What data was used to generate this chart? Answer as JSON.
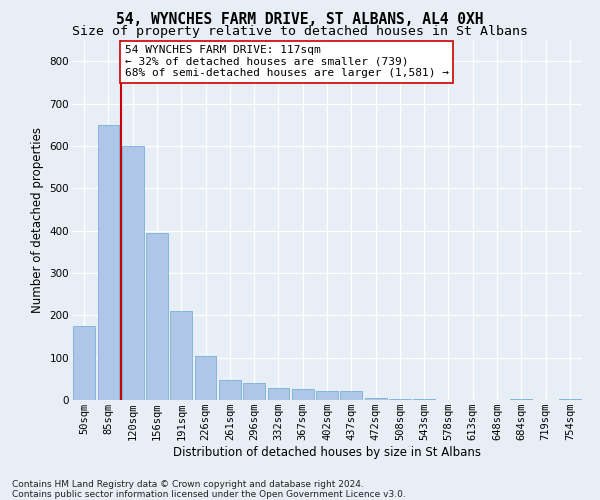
{
  "title": "54, WYNCHES FARM DRIVE, ST ALBANS, AL4 0XH",
  "subtitle": "Size of property relative to detached houses in St Albans",
  "xlabel": "Distribution of detached houses by size in St Albans",
  "ylabel": "Number of detached properties",
  "footnote": "Contains HM Land Registry data © Crown copyright and database right 2024.\nContains public sector information licensed under the Open Government Licence v3.0.",
  "bar_labels": [
    "50sqm",
    "85sqm",
    "120sqm",
    "156sqm",
    "191sqm",
    "226sqm",
    "261sqm",
    "296sqm",
    "332sqm",
    "367sqm",
    "402sqm",
    "437sqm",
    "472sqm",
    "508sqm",
    "543sqm",
    "578sqm",
    "613sqm",
    "648sqm",
    "684sqm",
    "719sqm",
    "754sqm"
  ],
  "bar_values": [
    175,
    650,
    600,
    395,
    210,
    105,
    47,
    40,
    28,
    25,
    22,
    22,
    4,
    3,
    3,
    0,
    0,
    0,
    3,
    0,
    3
  ],
  "bar_color": "#aec6e8",
  "bar_edge_color": "#7ab0d8",
  "background_color": "#e8eef5",
  "grid_color": "#ffffff",
  "vline_color": "#cc0000",
  "annotation_text": "54 WYNCHES FARM DRIVE: 117sqm\n← 32% of detached houses are smaller (739)\n68% of semi-detached houses are larger (1,581) →",
  "ylim": [
    0,
    850
  ],
  "yticks": [
    0,
    100,
    200,
    300,
    400,
    500,
    600,
    700,
    800
  ],
  "title_fontsize": 10.5,
  "subtitle_fontsize": 9.5,
  "ylabel_fontsize": 8.5,
  "xlabel_fontsize": 8.5,
  "tick_fontsize": 7.5,
  "annotation_fontsize": 8,
  "footnote_fontsize": 6.5
}
